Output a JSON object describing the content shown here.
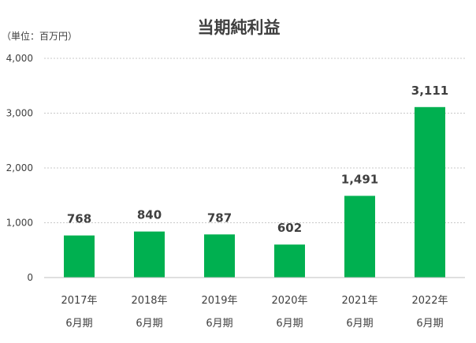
{
  "chart_data": {
    "type": "bar",
    "title": "当期純利益",
    "unit_label": "（単位：百万円）",
    "categories": [
      {
        "year": "2017年",
        "period": "6月期"
      },
      {
        "year": "2018年",
        "period": "6月期"
      },
      {
        "year": "2019年",
        "period": "6月期"
      },
      {
        "year": "2020年",
        "period": "6月期"
      },
      {
        "year": "2021年",
        "period": "6月期"
      },
      {
        "year": "2022年",
        "period": "6月期"
      }
    ],
    "values": [
      768,
      840,
      787,
      602,
      1491,
      3111
    ],
    "data_labels": [
      "768",
      "840",
      "787",
      "602",
      "1,491",
      "3,111"
    ],
    "ylim": [
      0,
      4000
    ],
    "yticks": [
      0,
      1000,
      2000,
      3000,
      4000
    ],
    "ytick_labels": [
      "0",
      "1,000",
      "2,000",
      "3,000",
      "4,000"
    ],
    "grid": "horizontal-dashed",
    "colors": {
      "bar": "#00b050",
      "grid": "#c8c8c8",
      "axis": "#bfbfbf",
      "text": "#404040",
      "title": "#404040"
    }
  }
}
